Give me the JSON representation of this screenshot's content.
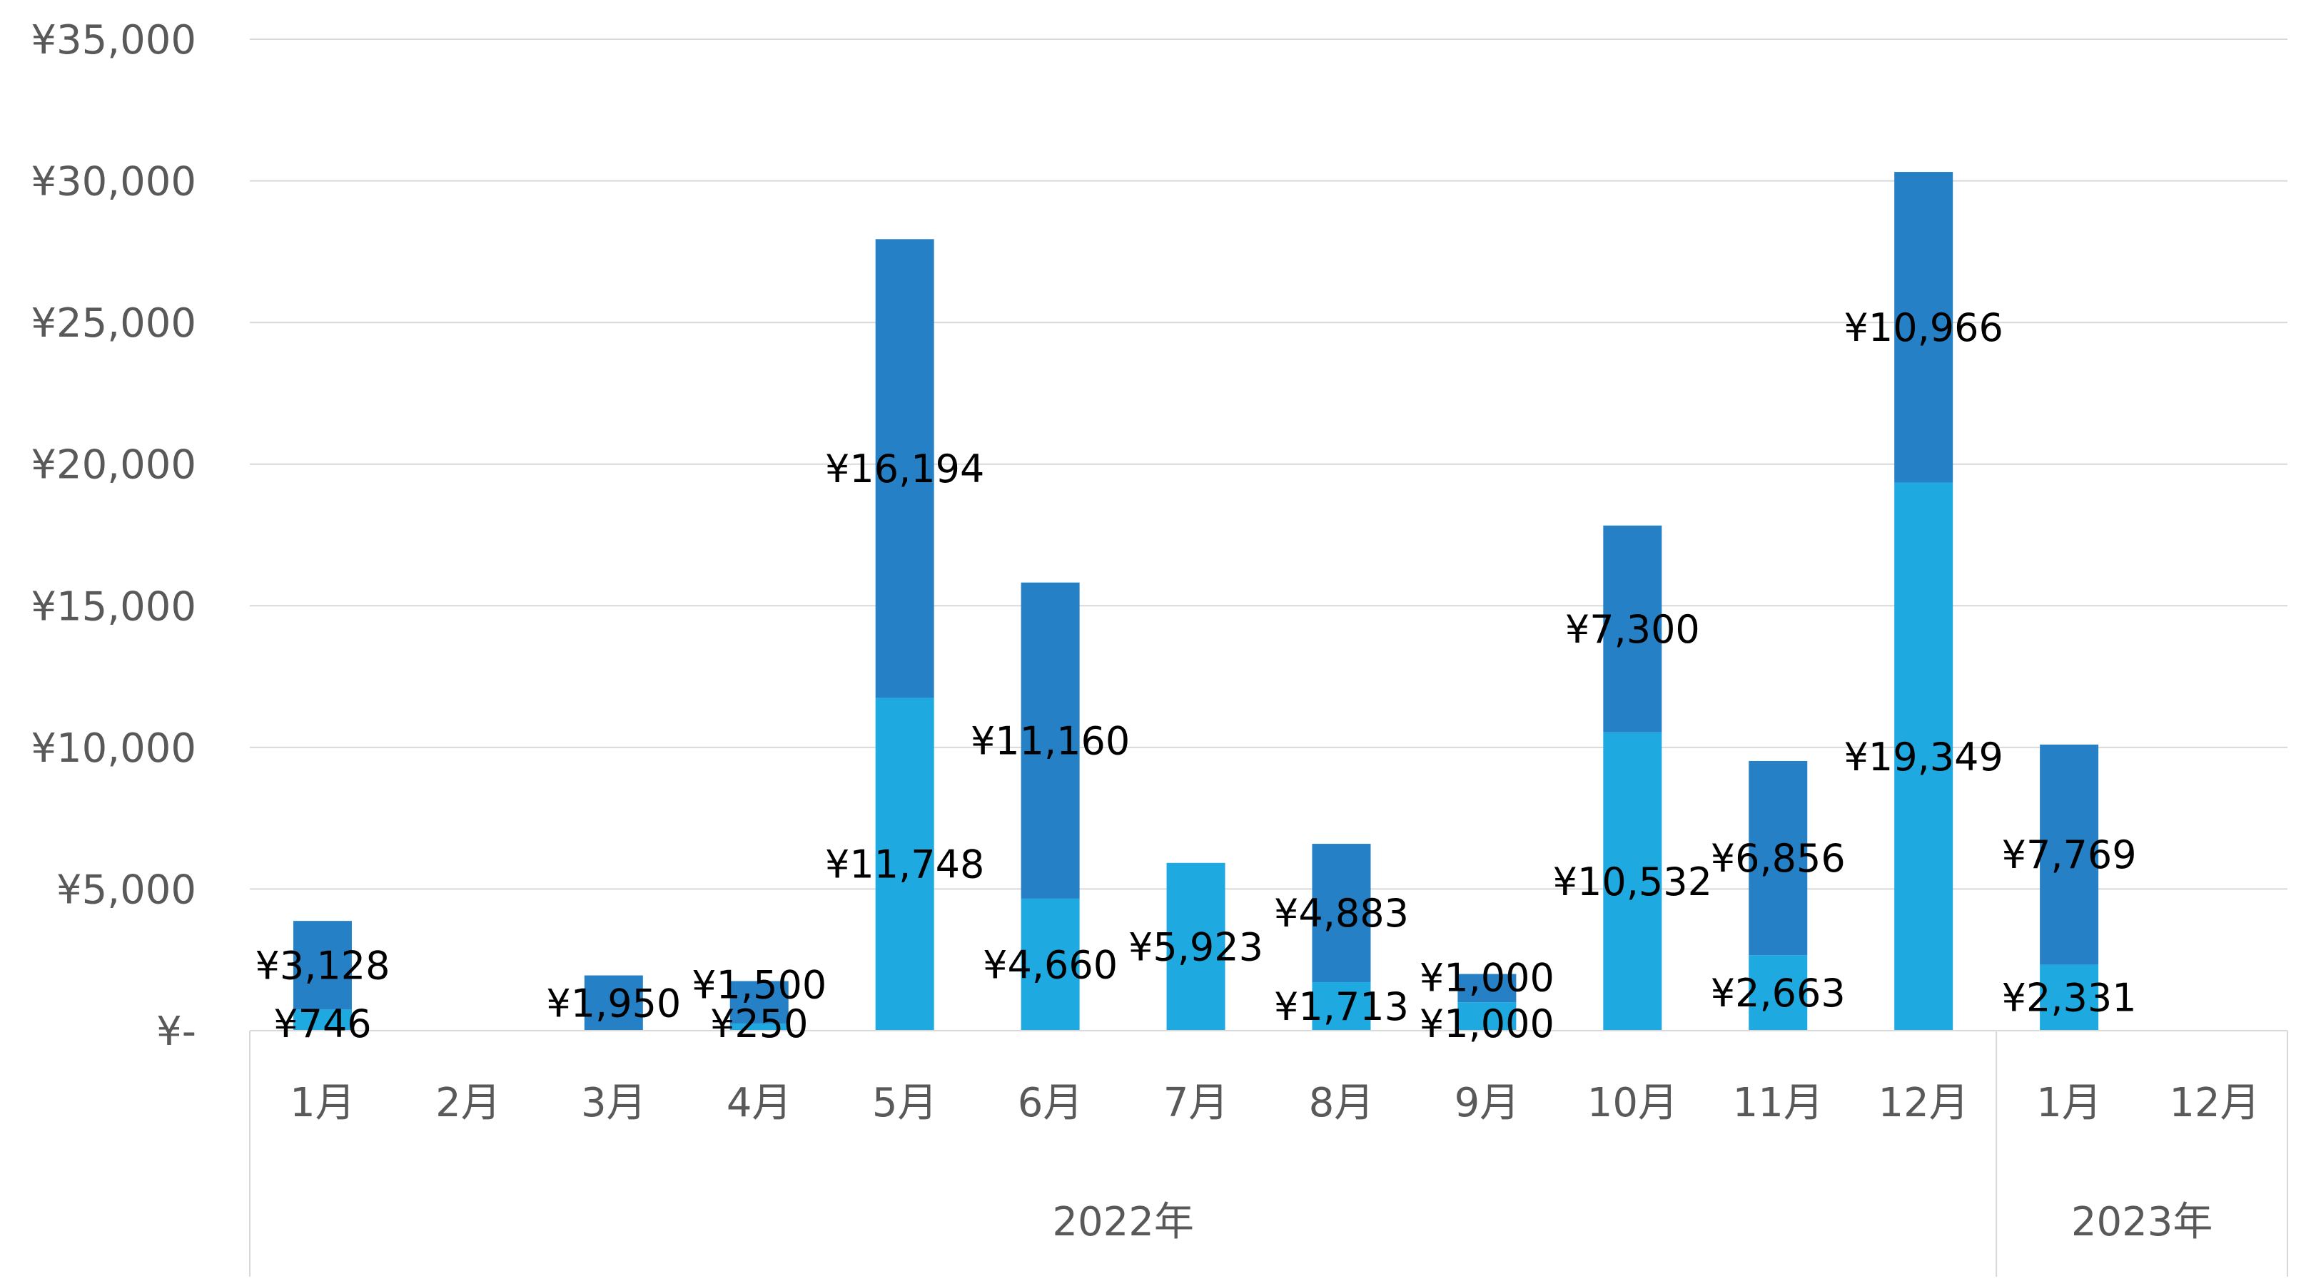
{
  "chart_data": {
    "type": "bar",
    "stacked": true,
    "categories": [
      "1月",
      "2月",
      "3月",
      "4月",
      "5月",
      "6月",
      "7月",
      "8月",
      "9月",
      "10月",
      "11月",
      "12月",
      "1月",
      "12月"
    ],
    "category_groups": [
      {
        "label": "2022年",
        "count": 12
      },
      {
        "label": "2023年",
        "count": 2
      }
    ],
    "series": [
      {
        "color": "#1EAAE1",
        "values": [
          746,
          0,
          0,
          250,
          11748,
          4660,
          5923,
          1713,
          1000,
          10532,
          2663,
          19349,
          2331,
          0
        ],
        "labels": [
          "¥746",
          "",
          "",
          "¥250",
          "¥11,748",
          "¥4,660",
          "¥5,923",
          "¥1,713",
          "¥1,000",
          "¥10,532",
          "¥2,663",
          "¥19,349",
          "¥2,331",
          ""
        ]
      },
      {
        "color": "#2680C6",
        "values": [
          3128,
          0,
          1950,
          1500,
          16194,
          11160,
          0,
          4883,
          1000,
          7300,
          6856,
          10966,
          7769,
          0
        ],
        "labels": [
          "¥3,128",
          "",
          "¥1,950",
          "¥1,500",
          "¥16,194",
          "¥11,160",
          "",
          "¥4,883",
          "¥1,000",
          "¥7,300",
          "¥6,856",
          "¥10,966",
          "¥7,769",
          ""
        ]
      }
    ],
    "y_ticks": [
      "¥-",
      "¥5,000",
      "¥10,000",
      "¥15,000",
      "¥20,000",
      "¥25,000",
      "¥30,000",
      "¥35,000"
    ],
    "ylim": [
      0,
      35000
    ],
    "grid": true,
    "legend": "none",
    "title": "",
    "xlabel": "",
    "ylabel": ""
  }
}
